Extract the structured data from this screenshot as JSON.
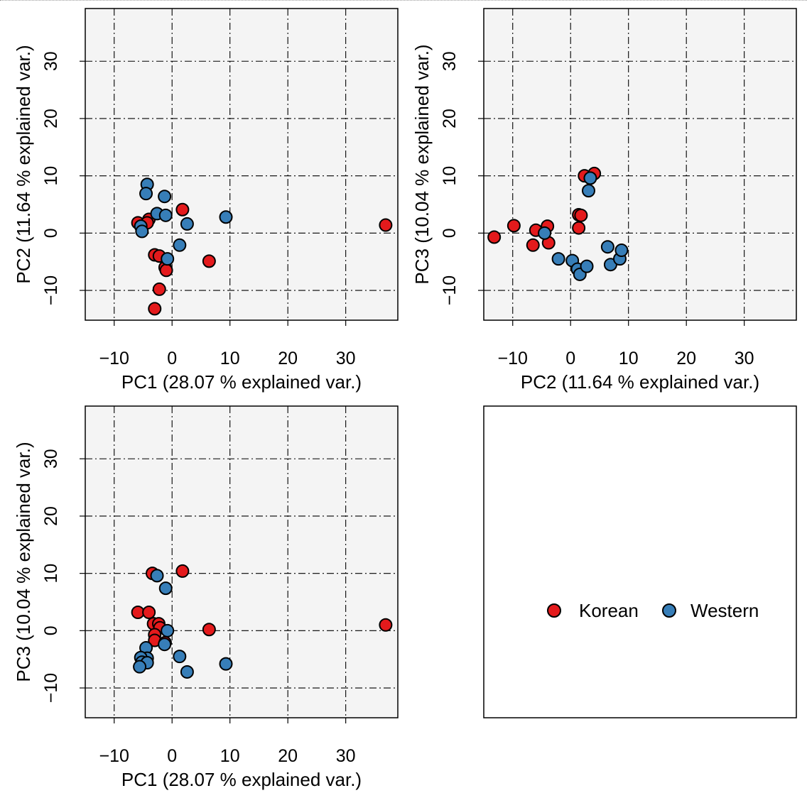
{
  "colors": {
    "Korean": "#E41A1C",
    "Western": "#377EB8",
    "panel_bg": "#F4F4F4"
  },
  "legend": {
    "items": [
      {
        "label": "Korean",
        "color": "#E41A1C"
      },
      {
        "label": "Western",
        "color": "#377EB8"
      }
    ]
  },
  "chart_data": [
    {
      "type": "scatter",
      "title": "",
      "xlabel": "PC1 (28.07 % explained var.)",
      "ylabel": "PC2 (11.64 % explained var.)",
      "xlim": [
        -15,
        39
      ],
      "ylim": [
        -15.2,
        39.2
      ],
      "xticks": [
        -10,
        0,
        10,
        20,
        30
      ],
      "yticks": [
        -10,
        0,
        10,
        20,
        30
      ],
      "grid": true,
      "series": [
        {
          "name": "Korean",
          "points": [
            [
              36.9,
              1.4
            ],
            [
              1.8,
              4.1
            ],
            [
              6.4,
              -4.9
            ],
            [
              -3.0,
              -3.8
            ],
            [
              -2.2,
              -4.0
            ],
            [
              -1.2,
              -6.0
            ],
            [
              -1.0,
              -6.5
            ],
            [
              -2.2,
              -9.8
            ],
            [
              -3.0,
              -13.2
            ],
            [
              -5.9,
              1.8
            ],
            [
              -4.0,
              2.4
            ],
            [
              -4.3,
              1.8
            ]
          ]
        },
        {
          "name": "Western",
          "points": [
            [
              -4.3,
              8.5
            ],
            [
              -4.5,
              6.9
            ],
            [
              -1.3,
              6.4
            ],
            [
              -2.6,
              3.4
            ],
            [
              -1.1,
              3.1
            ],
            [
              2.6,
              1.6
            ],
            [
              9.3,
              2.8
            ],
            [
              -5.4,
              1.2
            ],
            [
              -5.2,
              0.3
            ],
            [
              -0.8,
              -4.5
            ],
            [
              1.3,
              -2.1
            ]
          ]
        }
      ]
    },
    {
      "type": "scatter",
      "title": "",
      "xlabel": "PC2 (11.64 % explained var.)",
      "ylabel": "PC3 (10.04 % explained var.)",
      "xlim": [
        -15,
        39
      ],
      "ylim": [
        -15.2,
        39.2
      ],
      "xticks": [
        -10,
        0,
        10,
        20,
        30
      ],
      "yticks": [
        -10,
        0,
        10,
        20,
        30
      ],
      "grid": true,
      "series": [
        {
          "name": "Korean",
          "points": [
            [
              -13.2,
              -0.7
            ],
            [
              -9.8,
              1.3
            ],
            [
              -6.0,
              0.5
            ],
            [
              -6.5,
              -2.1
            ],
            [
              -4.0,
              1.2
            ],
            [
              -3.8,
              -1.7
            ],
            [
              1.4,
              3.2
            ],
            [
              1.8,
              3.1
            ],
            [
              1.4,
              0.9
            ],
            [
              2.4,
              10.0
            ],
            [
              4.1,
              10.4
            ]
          ]
        },
        {
          "name": "Western",
          "points": [
            [
              -4.5,
              0.0
            ],
            [
              3.1,
              7.4
            ],
            [
              3.4,
              9.6
            ],
            [
              -2.1,
              -4.5
            ],
            [
              0.3,
              -4.8
            ],
            [
              1.2,
              -6.3
            ],
            [
              1.6,
              -7.2
            ],
            [
              2.8,
              -5.8
            ],
            [
              6.4,
              -2.4
            ],
            [
              6.9,
              -5.5
            ],
            [
              8.5,
              -4.5
            ],
            [
              8.8,
              -3.0
            ]
          ]
        }
      ]
    },
    {
      "type": "scatter",
      "title": "",
      "xlabel": "PC1 (28.07 % explained var.)",
      "ylabel": "PC3 (10.04 % explained var.)",
      "xlim": [
        -15,
        39
      ],
      "ylim": [
        -15.2,
        39.2
      ],
      "xticks": [
        -10,
        0,
        10,
        20,
        30
      ],
      "yticks": [
        -10,
        0,
        10,
        20,
        30
      ],
      "grid": true,
      "series": [
        {
          "name": "Korean",
          "points": [
            [
              -3.4,
              10.0
            ],
            [
              1.8,
              10.4
            ],
            [
              -5.9,
              3.2
            ],
            [
              -4.0,
              3.2
            ],
            [
              -3.2,
              1.2
            ],
            [
              -2.3,
              1.2
            ],
            [
              -2.1,
              0.5
            ],
            [
              -3.0,
              -0.7
            ],
            [
              -3.0,
              -1.7
            ],
            [
              -1.2,
              -2.1
            ],
            [
              6.4,
              0.2
            ],
            [
              36.9,
              1.0
            ]
          ]
        },
        {
          "name": "Western",
          "points": [
            [
              -2.6,
              9.6
            ],
            [
              -1.1,
              7.4
            ],
            [
              -0.8,
              0.0
            ],
            [
              -1.3,
              -2.4
            ],
            [
              1.3,
              -4.5
            ],
            [
              -4.5,
              -3.0
            ],
            [
              -4.3,
              -4.8
            ],
            [
              -5.4,
              -4.7
            ],
            [
              -5.2,
              -5.5
            ],
            [
              -4.3,
              -5.6
            ],
            [
              -5.6,
              -6.3
            ],
            [
              2.6,
              -7.2
            ],
            [
              9.3,
              -5.8
            ]
          ]
        }
      ]
    }
  ]
}
